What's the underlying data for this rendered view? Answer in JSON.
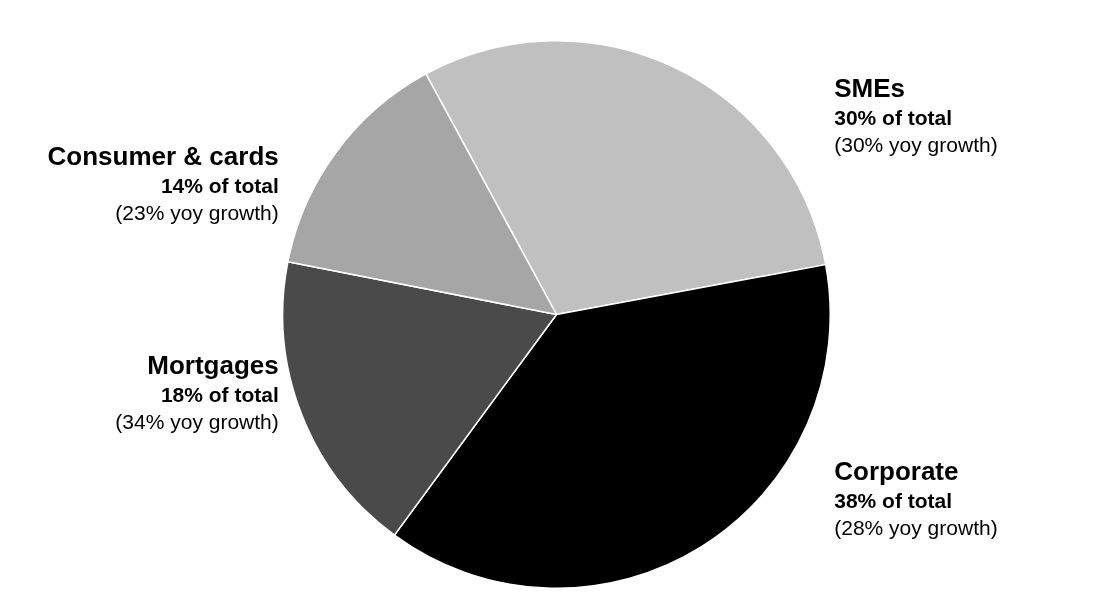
{
  "chart_data": {
    "type": "pie",
    "categories": [
      "SMEs",
      "Corporate",
      "Mortgages",
      "Consumer & cards"
    ],
    "values": [
      30,
      38,
      18,
      14
    ],
    "colors": [
      "#c0c0c0",
      "#000000",
      "#4a4a4a",
      "#a6a6a6"
    ],
    "value_labels": [
      "30% of total",
      "38% of total",
      "18% of total",
      "14% of total"
    ],
    "annotations": [
      "(30% yoy growth)",
      "(28% yoy growth)",
      "(34% yoy growth)",
      "(23% yoy growth)"
    ]
  }
}
